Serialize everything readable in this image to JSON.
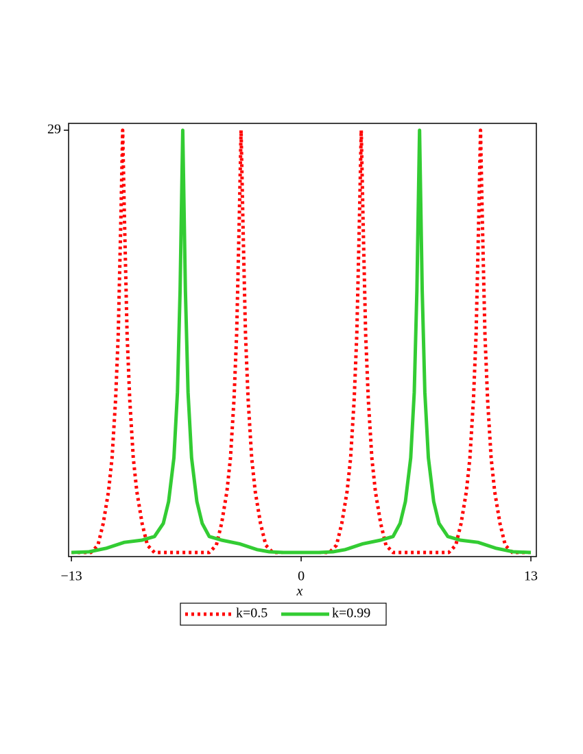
{
  "chart_data": {
    "type": "line",
    "xlabel": "x",
    "xlim": [
      -13.16,
      13.31
    ],
    "ylim": [
      -0.28,
      29.47
    ],
    "xticks": [
      {
        "value": -13,
        "label": "−13"
      },
      0,
      13
    ],
    "yticks": [
      29
    ],
    "series": [
      {
        "name": "k=0.5",
        "color": "#ff0000",
        "style": "dotted",
        "x": [
          -13,
          -11.9,
          -11.5,
          -11.2,
          -10.9,
          -10.7,
          -10.5,
          -10.35,
          -10.2,
          -10.1,
          -10.0,
          -9.85,
          -9.7,
          -9.5,
          -9.3,
          -9.0,
          -8.7,
          -8.3,
          -5.2,
          -4.8,
          -4.5,
          -4.2,
          -4.0,
          -3.8,
          -3.65,
          -3.5,
          -3.4,
          -3.3,
          -3.15,
          -3.0,
          -2.8,
          -2.6,
          -2.3,
          -2.0,
          -1.6,
          1.6,
          2.0,
          2.3,
          2.6,
          2.8,
          3.0,
          3.15,
          3.3,
          3.4,
          3.5,
          3.65,
          3.8,
          4.0,
          4.2,
          4.5,
          4.8,
          5.2,
          8.35,
          8.75,
          9.05,
          9.35,
          9.55,
          9.75,
          9.9,
          10.05,
          10.15,
          10.25,
          10.4,
          10.55,
          10.75,
          10.95,
          11.25,
          11.55,
          11.95,
          13
        ],
        "values": [
          0,
          0,
          0.5,
          2,
          4.2,
          6.5,
          10.5,
          15,
          23,
          29,
          23,
          15,
          10.5,
          6.5,
          4.2,
          2,
          0.5,
          0,
          0,
          0.5,
          2,
          4.2,
          6.5,
          10.5,
          15,
          23,
          29,
          23,
          15,
          10.5,
          6.5,
          4.2,
          2,
          0.5,
          0,
          0,
          0.5,
          2,
          4.2,
          6.5,
          10.5,
          15,
          23,
          29,
          23,
          15,
          10.5,
          6.5,
          4.2,
          2,
          0.5,
          0,
          0,
          0.5,
          2,
          4.2,
          6.5,
          10.5,
          15,
          23,
          29,
          23,
          15,
          10.5,
          6.5,
          4.2,
          2,
          0.5,
          0,
          0
        ]
      },
      {
        "name": "k=0.99",
        "color": "#33cc33",
        "style": "solid",
        "x": [
          -13,
          -12,
          -11,
          -10,
          -9,
          -8.3,
          -7.8,
          -7.5,
          -7.2,
          -7.0,
          -6.85,
          -6.7,
          -6.55,
          -6.4,
          -6.2,
          -5.9,
          -5.6,
          -5.2,
          -4.5,
          -3.5,
          -2.5,
          -1.8,
          -1,
          0,
          1,
          1.8,
          2.5,
          3.5,
          4.5,
          5.2,
          5.6,
          5.9,
          6.2,
          6.4,
          6.55,
          6.7,
          6.85,
          7.0,
          7.2,
          7.5,
          7.8,
          8.3,
          9,
          10,
          11,
          12,
          13
        ],
        "values": [
          0,
          0.05,
          0.3,
          0.7,
          0.85,
          1.1,
          2,
          3.5,
          6.5,
          11,
          18,
          29,
          18,
          11,
          6.5,
          3.5,
          2,
          1.1,
          0.85,
          0.6,
          0.2,
          0.05,
          0,
          0,
          0,
          0.05,
          0.2,
          0.6,
          0.85,
          1.1,
          2,
          3.5,
          6.5,
          11,
          18,
          29,
          18,
          11,
          6.5,
          3.5,
          2,
          1.1,
          0.85,
          0.7,
          0.3,
          0.05,
          0
        ]
      }
    ]
  }
}
